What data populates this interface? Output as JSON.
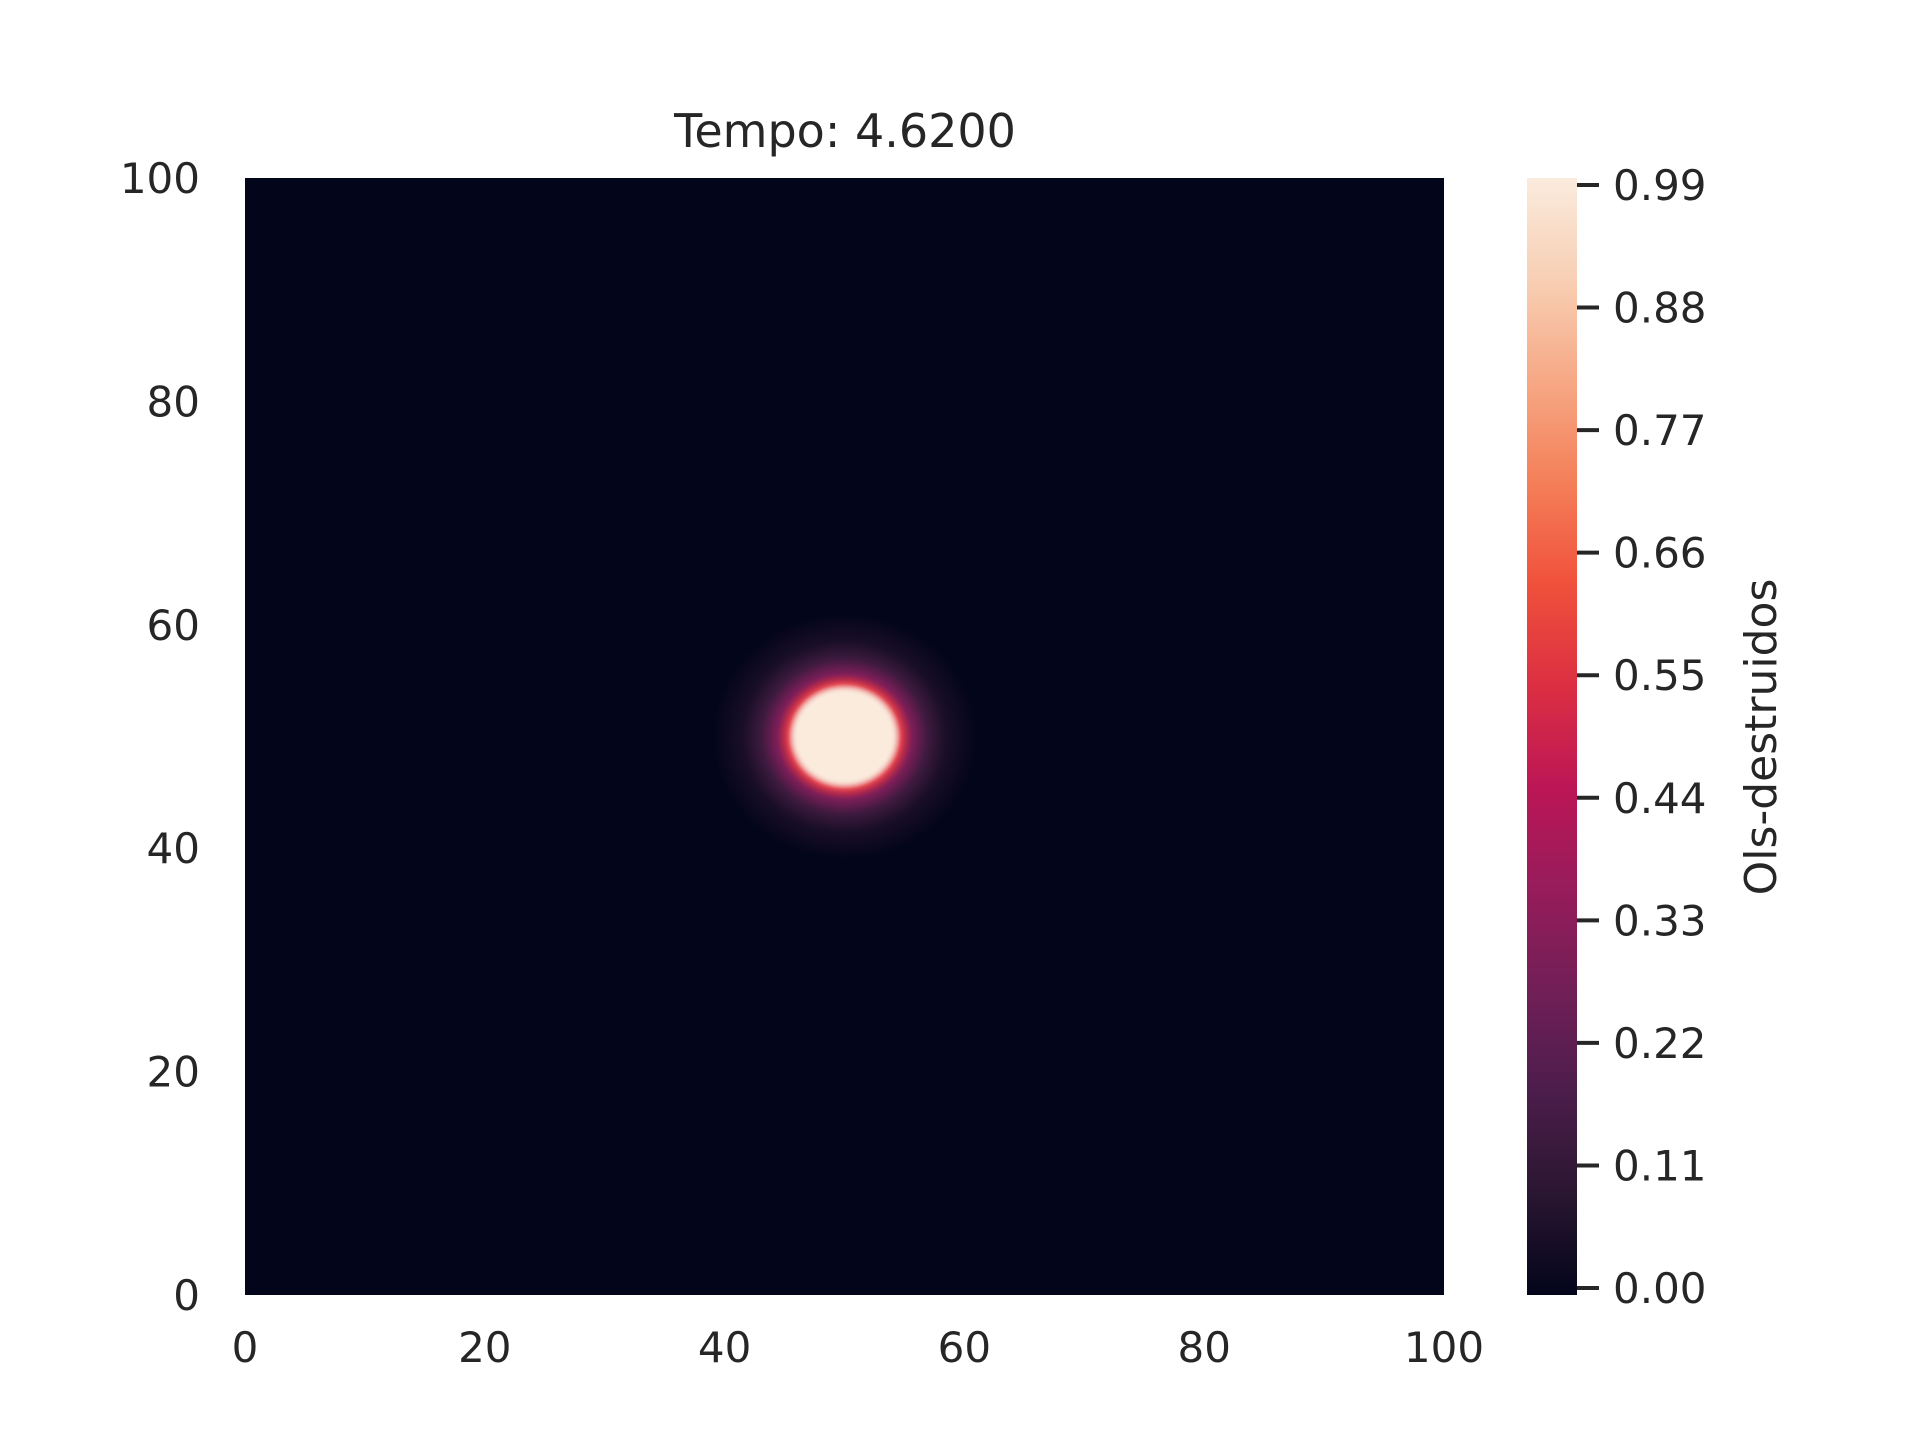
{
  "chart_data": {
    "type": "heatmap",
    "title": "Tempo: 4.6200",
    "xlabel": "",
    "ylabel": "",
    "xlim": [
      0,
      100
    ],
    "ylim": [
      0,
      100
    ],
    "x_ticks": [
      "0",
      "20",
      "40",
      "60",
      "80",
      "100"
    ],
    "y_ticks": [
      "0",
      "20",
      "40",
      "60",
      "80",
      "100"
    ],
    "grid": false,
    "background_value": 0.0,
    "blob": {
      "center_x": 50,
      "center_y": 50,
      "core_radius": 4.5,
      "peak_value": 0.99,
      "halo_radius": 11
    },
    "colorbar": {
      "label": "Ols-destruidos",
      "min": 0.0,
      "max": 0.99,
      "ticks": [
        "0.00",
        "0.11",
        "0.22",
        "0.33",
        "0.44",
        "0.55",
        "0.66",
        "0.77",
        "0.88",
        "0.99"
      ],
      "colormap": "rocket",
      "colors": [
        "#03051a",
        "#2a1631",
        "#4c1d4b",
        "#711f57",
        "#971c5b",
        "#bc1656",
        "#dc2f42",
        "#f0513b",
        "#f47f58",
        "#f6a885",
        "#f8cfb4",
        "#faebdd"
      ]
    }
  }
}
